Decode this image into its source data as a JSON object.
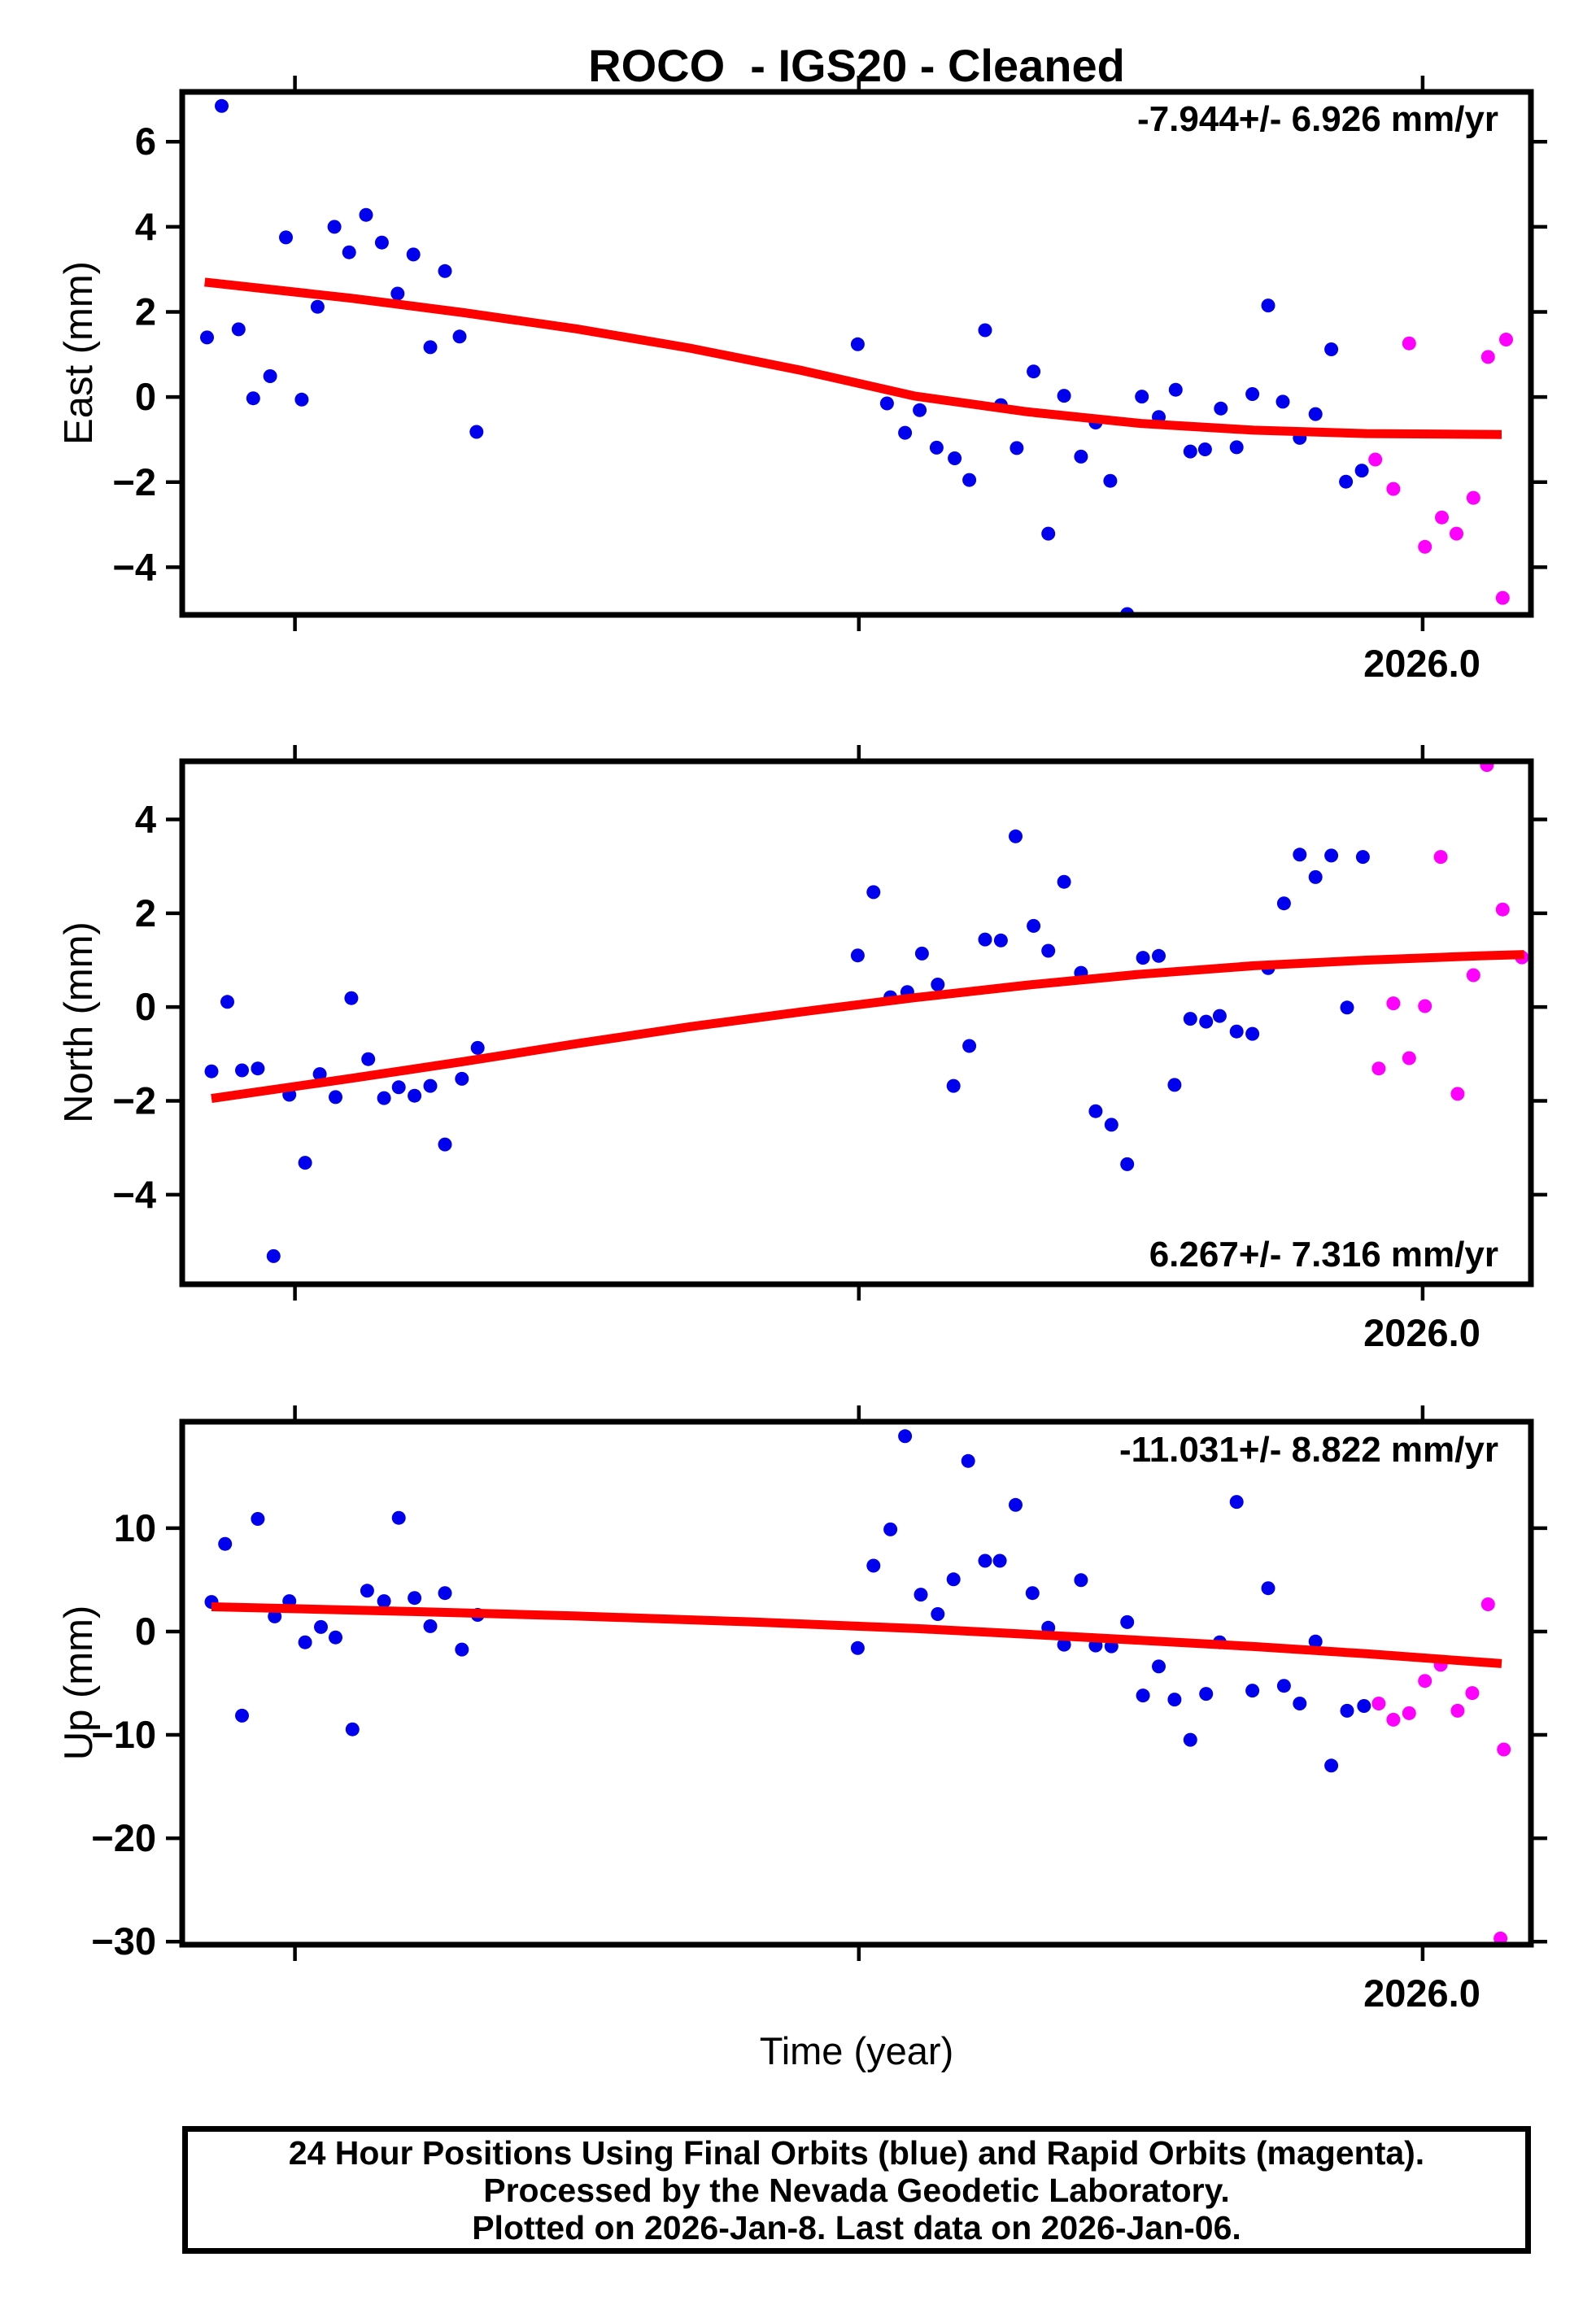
{
  "title": "ROCO  - IGS20 - Cleaned",
  "colors": {
    "final_orbits": "#0000ee",
    "rapid_orbits": "#ff00ff",
    "trend_line": "#ff0000",
    "frame": "#000000",
    "background": "#ffffff"
  },
  "time_axis": {
    "label": "Time (year)",
    "range": [
      2024.9,
      2026.096
    ],
    "ticks": [
      2025.0,
      2025.5,
      2026.0
    ],
    "labeled_tick": "2026.0"
  },
  "caption": {
    "line1": "24 Hour Positions Using Final Orbits (blue) and Rapid Orbits (magenta).",
    "line2": "Processed by the Nevada Geodetic Laboratory.",
    "line3": "Plotted on 2026-Jan-8. Last data on 2026-Jan-06."
  },
  "chart_data": [
    {
      "type": "scatter",
      "name": "east",
      "ylabel": "East (mm)",
      "annotation": "-7.944+/- 6.926 mm/yr",
      "annotation_position": "top-right",
      "x_range": [
        2024.9,
        2026.096
      ],
      "x_ticks": [
        2025.0,
        2025.5,
        2026.0
      ],
      "x_tick_label": "2026.0",
      "y_range": [
        -5.12,
        7.17
      ],
      "y_ticks": [
        {
          "v": 6,
          "label": "6"
        },
        {
          "v": 4,
          "label": "4"
        },
        {
          "v": 2,
          "label": "2"
        },
        {
          "v": 0,
          "label": "0"
        },
        {
          "v": -2,
          "label": "−2"
        },
        {
          "v": -4,
          "label": "−4"
        }
      ],
      "grid": false,
      "legend": "none",
      "series": [
        {
          "name": "final_orbits",
          "color_key": "final_orbits",
          "points": [
            [
              2024.922,
              1.4
            ],
            [
              2024.935,
              6.84
            ],
            [
              2024.95,
              1.59
            ],
            [
              2024.963,
              -0.03
            ],
            [
              2024.978,
              0.49
            ],
            [
              2024.992,
              3.75
            ],
            [
              2025.006,
              -0.06
            ],
            [
              2025.02,
              2.12
            ],
            [
              2025.035,
              4.0
            ],
            [
              2025.048,
              3.4
            ],
            [
              2025.063,
              4.28
            ],
            [
              2025.077,
              3.63
            ],
            [
              2025.091,
              2.43
            ],
            [
              2025.105,
              3.35
            ],
            [
              2025.12,
              1.17
            ],
            [
              2025.133,
              2.96
            ],
            [
              2025.146,
              1.42
            ],
            [
              2025.161,
              -0.82
            ],
            [
              2025.499,
              1.24
            ],
            [
              2025.525,
              -0.15
            ],
            [
              2025.541,
              -0.84
            ],
            [
              2025.554,
              -0.31
            ],
            [
              2025.569,
              -1.19
            ],
            [
              2025.585,
              -1.44
            ],
            [
              2025.598,
              -1.95
            ],
            [
              2025.612,
              1.57
            ],
            [
              2025.626,
              -0.19
            ],
            [
              2025.64,
              -1.2
            ],
            [
              2025.655,
              0.6
            ],
            [
              2025.668,
              -3.21
            ],
            [
              2025.682,
              0.03
            ],
            [
              2025.697,
              -1.4
            ],
            [
              2025.71,
              -0.6
            ],
            [
              2025.723,
              -1.97
            ],
            [
              2025.738,
              -5.1
            ],
            [
              2025.751,
              0.01
            ],
            [
              2025.766,
              -0.47
            ],
            [
              2025.781,
              0.17
            ],
            [
              2025.794,
              -1.28
            ],
            [
              2025.807,
              -1.23
            ],
            [
              2025.821,
              -0.27
            ],
            [
              2025.835,
              -1.18
            ],
            [
              2025.849,
              0.07
            ],
            [
              2025.863,
              2.15
            ],
            [
              2025.876,
              -0.11
            ],
            [
              2025.891,
              -0.96
            ],
            [
              2025.905,
              -0.4
            ],
            [
              2025.919,
              1.12
            ],
            [
              2025.932,
              -1.99
            ],
            [
              2025.946,
              -1.73
            ]
          ]
        },
        {
          "name": "rapid_orbits",
          "color_key": "rapid_orbits",
          "points": [
            [
              2025.958,
              -1.47
            ],
            [
              2025.974,
              -2.16
            ],
            [
              2025.988,
              1.26
            ],
            [
              2026.002,
              -3.52
            ],
            [
              2026.017,
              -2.83
            ],
            [
              2026.03,
              -3.21
            ],
            [
              2026.045,
              -2.37
            ],
            [
              2026.058,
              0.94
            ],
            [
              2026.071,
              -4.72
            ],
            [
              2026.074,
              1.35
            ]
          ]
        }
      ],
      "trend": [
        [
          2024.92,
          2.7
        ],
        [
          2025.05,
          2.32
        ],
        [
          2025.15,
          1.98
        ],
        [
          2025.25,
          1.6
        ],
        [
          2025.35,
          1.15
        ],
        [
          2025.45,
          0.62
        ],
        [
          2025.55,
          0.02
        ],
        [
          2025.65,
          -0.35
        ],
        [
          2025.75,
          -0.62
        ],
        [
          2025.85,
          -0.78
        ],
        [
          2025.95,
          -0.86
        ],
        [
          2026.07,
          -0.88
        ]
      ]
    },
    {
      "type": "scatter",
      "name": "north",
      "ylabel": "North (mm)",
      "annotation": "6.267+/- 7.316 mm/yr",
      "annotation_position": "bottom-right",
      "x_range": [
        2024.9,
        2026.096
      ],
      "x_ticks": [
        2025.0,
        2025.5,
        2026.0
      ],
      "x_tick_label": "2026.0",
      "y_range": [
        -5.91,
        5.24
      ],
      "y_ticks": [
        {
          "v": 4,
          "label": "4"
        },
        {
          "v": 2,
          "label": "2"
        },
        {
          "v": 0,
          "label": "0"
        },
        {
          "v": -2,
          "label": "−2"
        },
        {
          "v": -4,
          "label": "−4"
        }
      ],
      "grid": false,
      "legend": "none",
      "series": [
        {
          "name": "final_orbits",
          "color_key": "final_orbits",
          "points": [
            [
              2024.926,
              -1.37
            ],
            [
              2024.94,
              0.11
            ],
            [
              2024.953,
              -1.35
            ],
            [
              2024.967,
              -1.31
            ],
            [
              2024.981,
              -5.31
            ],
            [
              2024.995,
              -1.87
            ],
            [
              2025.009,
              -3.32
            ],
            [
              2025.022,
              -1.43
            ],
            [
              2025.036,
              -1.92
            ],
            [
              2025.05,
              0.19
            ],
            [
              2025.065,
              -1.11
            ],
            [
              2025.079,
              -1.94
            ],
            [
              2025.092,
              -1.71
            ],
            [
              2025.106,
              -1.89
            ],
            [
              2025.12,
              -1.68
            ],
            [
              2025.133,
              -2.93
            ],
            [
              2025.148,
              -1.53
            ],
            [
              2025.162,
              -0.87
            ],
            [
              2025.499,
              1.1
            ],
            [
              2025.513,
              2.45
            ],
            [
              2025.528,
              0.21
            ],
            [
              2025.543,
              0.32
            ],
            [
              2025.556,
              1.14
            ],
            [
              2025.57,
              0.48
            ],
            [
              2025.584,
              -1.68
            ],
            [
              2025.598,
              -0.83
            ],
            [
              2025.612,
              1.44
            ],
            [
              2025.626,
              1.42
            ],
            [
              2025.639,
              3.64
            ],
            [
              2025.655,
              1.73
            ],
            [
              2025.668,
              1.2
            ],
            [
              2025.682,
              2.67
            ],
            [
              2025.697,
              0.73
            ],
            [
              2025.71,
              -2.22
            ],
            [
              2025.724,
              -2.51
            ],
            [
              2025.738,
              -3.35
            ],
            [
              2025.752,
              1.05
            ],
            [
              2025.766,
              1.09
            ],
            [
              2025.78,
              -1.66
            ],
            [
              2025.794,
              -0.25
            ],
            [
              2025.808,
              -0.31
            ],
            [
              2025.82,
              -0.19
            ],
            [
              2025.835,
              -0.52
            ],
            [
              2025.849,
              -0.57
            ],
            [
              2025.863,
              0.83
            ],
            [
              2025.877,
              2.21
            ],
            [
              2025.891,
              3.25
            ],
            [
              2025.905,
              2.77
            ],
            [
              2025.919,
              3.23
            ],
            [
              2025.933,
              -0.01
            ],
            [
              2025.947,
              3.2
            ]
          ]
        },
        {
          "name": "rapid_orbits",
          "color_key": "rapid_orbits",
          "points": [
            [
              2025.961,
              -1.31
            ],
            [
              2025.974,
              0.08
            ],
            [
              2025.988,
              -1.09
            ],
            [
              2026.002,
              0.02
            ],
            [
              2026.016,
              3.2
            ],
            [
              2026.031,
              -1.85
            ],
            [
              2026.045,
              0.68
            ],
            [
              2026.057,
              5.16
            ],
            [
              2026.071,
              2.08
            ],
            [
              2026.088,
              1.06
            ]
          ]
        }
      ],
      "trend": [
        [
          2024.926,
          -1.95
        ],
        [
          2025.05,
          -1.52
        ],
        [
          2025.15,
          -1.16
        ],
        [
          2025.25,
          -0.78
        ],
        [
          2025.35,
          -0.42
        ],
        [
          2025.45,
          -0.1
        ],
        [
          2025.55,
          0.2
        ],
        [
          2025.65,
          0.47
        ],
        [
          2025.75,
          0.7
        ],
        [
          2025.85,
          0.88
        ],
        [
          2025.95,
          1.0
        ],
        [
          2026.05,
          1.09
        ],
        [
          2026.09,
          1.12
        ]
      ]
    },
    {
      "type": "scatter",
      "name": "up",
      "ylabel": "Up (mm)",
      "annotation": "-11.031+/- 8.822 mm/yr",
      "annotation_position": "top-right",
      "x_range": [
        2024.9,
        2026.096
      ],
      "x_ticks": [
        2025.0,
        2025.5,
        2026.0
      ],
      "x_tick_label": "2026.0",
      "y_range": [
        -30.3,
        20.3
      ],
      "y_ticks": [
        {
          "v": 10,
          "label": "10"
        },
        {
          "v": 0,
          "label": "0"
        },
        {
          "v": -10,
          "label": "−10"
        },
        {
          "v": -20,
          "label": "−20"
        },
        {
          "v": -30,
          "label": "−30"
        }
      ],
      "grid": false,
      "legend": "none",
      "series": [
        {
          "name": "final_orbits",
          "color_key": "final_orbits",
          "points": [
            [
              2024.926,
              2.86
            ],
            [
              2024.938,
              8.48
            ],
            [
              2024.953,
              -8.14
            ],
            [
              2024.967,
              10.9
            ],
            [
              2024.982,
              1.46
            ],
            [
              2024.995,
              2.94
            ],
            [
              2025.009,
              -1.04
            ],
            [
              2025.023,
              0.44
            ],
            [
              2025.036,
              -0.57
            ],
            [
              2025.051,
              -9.46
            ],
            [
              2025.064,
              3.95
            ],
            [
              2025.079,
              2.94
            ],
            [
              2025.092,
              11.0
            ],
            [
              2025.106,
              3.25
            ],
            [
              2025.12,
              0.52
            ],
            [
              2025.133,
              3.72
            ],
            [
              2025.148,
              -1.74
            ],
            [
              2025.162,
              1.61
            ],
            [
              2025.499,
              -1.6
            ],
            [
              2025.513,
              6.37
            ],
            [
              2025.528,
              9.88
            ],
            [
              2025.541,
              18.9
            ],
            [
              2025.555,
              3.57
            ],
            [
              2025.57,
              1.69
            ],
            [
              2025.584,
              5.05
            ],
            [
              2025.597,
              16.5
            ],
            [
              2025.612,
              6.84
            ],
            [
              2025.625,
              6.84
            ],
            [
              2025.639,
              12.25
            ],
            [
              2025.654,
              3.72
            ],
            [
              2025.668,
              0.37
            ],
            [
              2025.682,
              -1.27
            ],
            [
              2025.697,
              4.97
            ],
            [
              2025.71,
              -1.35
            ],
            [
              2025.724,
              -1.43
            ],
            [
              2025.738,
              0.91
            ],
            [
              2025.752,
              -6.19
            ],
            [
              2025.766,
              -3.38
            ],
            [
              2025.78,
              -6.58
            ],
            [
              2025.794,
              -10.48
            ],
            [
              2025.808,
              -6.03
            ],
            [
              2025.82,
              -1.04
            ],
            [
              2025.835,
              12.54
            ],
            [
              2025.849,
              -5.72
            ],
            [
              2025.863,
              4.19
            ],
            [
              2025.877,
              -5.25
            ],
            [
              2025.891,
              -6.97
            ],
            [
              2025.905,
              -0.96
            ],
            [
              2025.919,
              -12.97
            ],
            [
              2025.933,
              -7.67
            ],
            [
              2025.948,
              -7.2
            ]
          ]
        },
        {
          "name": "rapid_orbits",
          "color_key": "rapid_orbits",
          "points": [
            [
              2025.961,
              -6.97
            ],
            [
              2025.974,
              -8.53
            ],
            [
              2025.988,
              -7.9
            ],
            [
              2026.002,
              -4.78
            ],
            [
              2026.016,
              -3.22
            ],
            [
              2026.031,
              -7.67
            ],
            [
              2026.044,
              -5.95
            ],
            [
              2026.058,
              2.63
            ],
            [
              2026.069,
              -29.7
            ],
            [
              2026.072,
              -11.41
            ]
          ]
        }
      ],
      "trend": [
        [
          2024.926,
          2.4
        ],
        [
          2025.1,
          1.95
        ],
        [
          2025.25,
          1.5
        ],
        [
          2025.4,
          0.95
        ],
        [
          2025.55,
          0.3
        ],
        [
          2025.7,
          -0.55
        ],
        [
          2025.85,
          -1.45
        ],
        [
          2025.95,
          -2.15
        ],
        [
          2026.07,
          -3.1
        ]
      ]
    }
  ]
}
